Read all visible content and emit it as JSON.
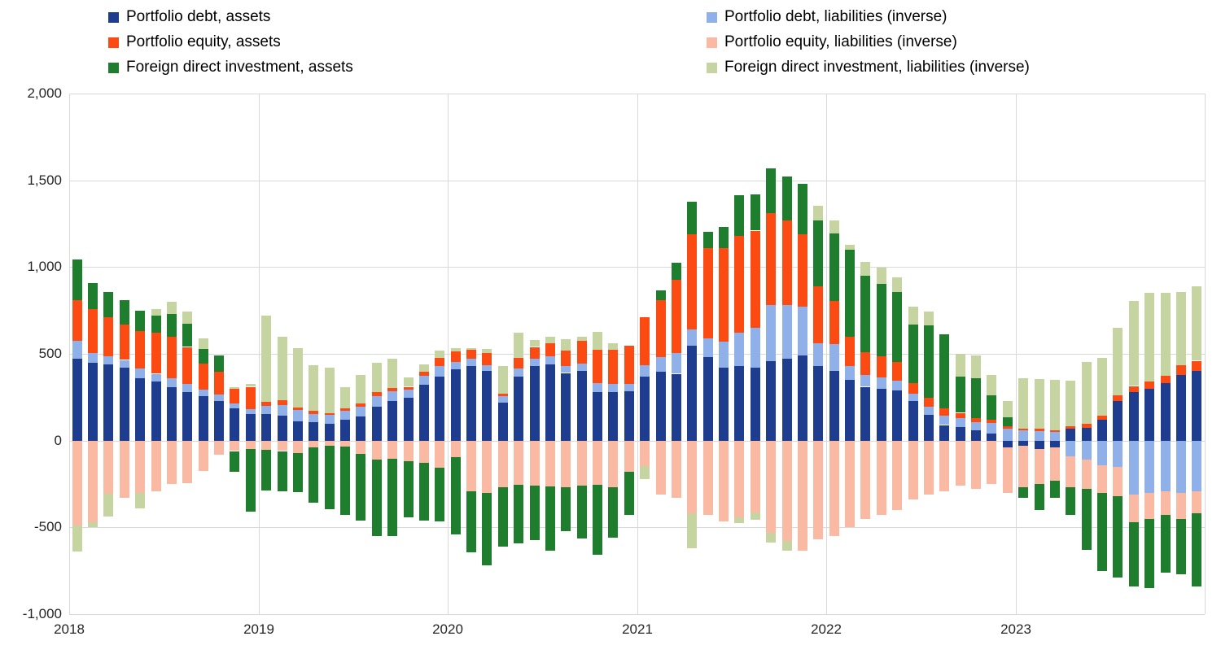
{
  "chart_data": {
    "type": "bar",
    "stacked": true,
    "title": "",
    "xlabel": "",
    "ylabel": "",
    "ylim": [
      -1000,
      2000
    ],
    "grid": true,
    "legend_position": "top",
    "months_per_year": 12,
    "x_year_labels": [
      "2018",
      "2019",
      "2020",
      "2021",
      "2022",
      "2023"
    ],
    "y_ticks": [
      {
        "value": 2000,
        "label": "2,000"
      },
      {
        "value": 1500,
        "label": "1,500"
      },
      {
        "value": 1000,
        "label": "1,000"
      },
      {
        "value": 500,
        "label": "500"
      },
      {
        "value": 0,
        "label": "0"
      },
      {
        "value": -500,
        "label": "-500"
      },
      {
        "value": -1000,
        "label": "-1,000"
      }
    ],
    "series": [
      {
        "id": "pd_assets",
        "name": "Portfolio debt, assets",
        "color": "#1f3d8f",
        "values": [
          470,
          450,
          440,
          420,
          360,
          340,
          310,
          280,
          255,
          230,
          185,
          155,
          155,
          145,
          110,
          105,
          95,
          120,
          140,
          195,
          230,
          245,
          320,
          370,
          410,
          430,
          400,
          220,
          370,
          430,
          440,
          390,
          400,
          280,
          280,
          285,
          370,
          395,
          385,
          545,
          480,
          420,
          430,
          420,
          460,
          470,
          490,
          430,
          400,
          350,
          310,
          300,
          290,
          230,
          150,
          90,
          80,
          60,
          40,
          -40,
          -30,
          -50,
          -40,
          70,
          75,
          120,
          230,
          280,
          300,
          330,
          380,
          400
        ]
      },
      {
        "id": "pd_liab",
        "name": "Portfolio debt, liabilities (inverse)",
        "color": "#8fb0e8",
        "values": [
          105,
          55,
          45,
          45,
          55,
          45,
          50,
          45,
          40,
          35,
          30,
          25,
          45,
          60,
          65,
          50,
          55,
          50,
          55,
          60,
          55,
          50,
          55,
          60,
          45,
          40,
          35,
          35,
          45,
          40,
          45,
          40,
          45,
          50,
          45,
          40,
          65,
          85,
          120,
          95,
          110,
          150,
          190,
          230,
          320,
          310,
          280,
          130,
          155,
          80,
          70,
          65,
          55,
          40,
          45,
          55,
          50,
          45,
          60,
          70,
          60,
          55,
          50,
          -90,
          -110,
          -140,
          -150,
          -310,
          -300,
          -290,
          -300,
          -290
        ]
      },
      {
        "id": "pe_assets",
        "name": "Portfolio equity, assets",
        "color": "#fb4a12",
        "values": [
          235,
          255,
          225,
          205,
          215,
          235,
          240,
          215,
          150,
          130,
          85,
          130,
          25,
          30,
          15,
          15,
          10,
          15,
          20,
          25,
          20,
          15,
          20,
          45,
          60,
          55,
          70,
          15,
          60,
          70,
          75,
          90,
          130,
          195,
          200,
          220,
          275,
          330,
          420,
          550,
          520,
          540,
          560,
          560,
          530,
          490,
          420,
          330,
          250,
          170,
          130,
          120,
          110,
          60,
          50,
          40,
          30,
          25,
          20,
          15,
          10,
          15,
          10,
          15,
          20,
          25,
          30,
          35,
          40,
          45,
          55,
          60
        ]
      },
      {
        "id": "pe_liab",
        "name": "Portfolio equity, liabilities (inverse)",
        "color": "#f9b9a2",
        "values": [
          -490,
          -470,
          -305,
          -330,
          -300,
          -290,
          -250,
          -245,
          -175,
          -80,
          -60,
          -50,
          -55,
          -60,
          -70,
          -40,
          -30,
          -35,
          -75,
          -110,
          -105,
          -120,
          -130,
          -155,
          -95,
          -290,
          -300,
          -270,
          -255,
          -260,
          -265,
          -270,
          -260,
          -255,
          -270,
          -180,
          -145,
          -310,
          -330,
          -420,
          -430,
          -465,
          -440,
          -415,
          -530,
          -580,
          -635,
          -570,
          -550,
          -500,
          -450,
          -430,
          -400,
          -340,
          -310,
          -290,
          -260,
          -280,
          -250,
          -260,
          -240,
          -200,
          -190,
          -180,
          -170,
          -160,
          -170,
          -160,
          -150,
          -140,
          -150,
          -130
        ]
      },
      {
        "id": "fdi_assets",
        "name": "Foreign direct investment, assets",
        "color": "#1f7d2e",
        "values": [
          235,
          150,
          145,
          140,
          120,
          100,
          130,
          135,
          85,
          95,
          -120,
          -360,
          -235,
          -230,
          -225,
          -320,
          -365,
          -395,
          -385,
          -440,
          -445,
          -320,
          -330,
          -310,
          -445,
          -355,
          -420,
          -340,
          -335,
          -315,
          -370,
          -250,
          -305,
          -405,
          -290,
          -250,
          0,
          55,
          100,
          185,
          95,
          120,
          235,
          210,
          260,
          250,
          290,
          380,
          390,
          500,
          440,
          420,
          400,
          340,
          420,
          430,
          210,
          230,
          140,
          50,
          -60,
          -150,
          -100,
          -160,
          -350,
          -450,
          -470,
          -370,
          -400,
          -330,
          -320,
          -420
        ]
      },
      {
        "id": "fdi_liab",
        "name": "Foreign direct investment, liabilities (inverse)",
        "color": "#c6d4a2",
        "values": [
          -150,
          -30,
          -135,
          0,
          -90,
          40,
          70,
          70,
          60,
          0,
          10,
          15,
          495,
          365,
          345,
          265,
          260,
          125,
          165,
          170,
          165,
          55,
          45,
          45,
          20,
          10,
          25,
          160,
          145,
          40,
          40,
          65,
          25,
          100,
          35,
          0,
          -75,
          0,
          0,
          -200,
          0,
          0,
          -35,
          -40,
          -60,
          -55,
          0,
          85,
          75,
          30,
          80,
          90,
          85,
          100,
          80,
          0,
          130,
          130,
          120,
          95,
          290,
          285,
          290,
          260,
          360,
          330,
          390,
          490,
          510,
          475,
          420,
          430
        ]
      }
    ]
  }
}
